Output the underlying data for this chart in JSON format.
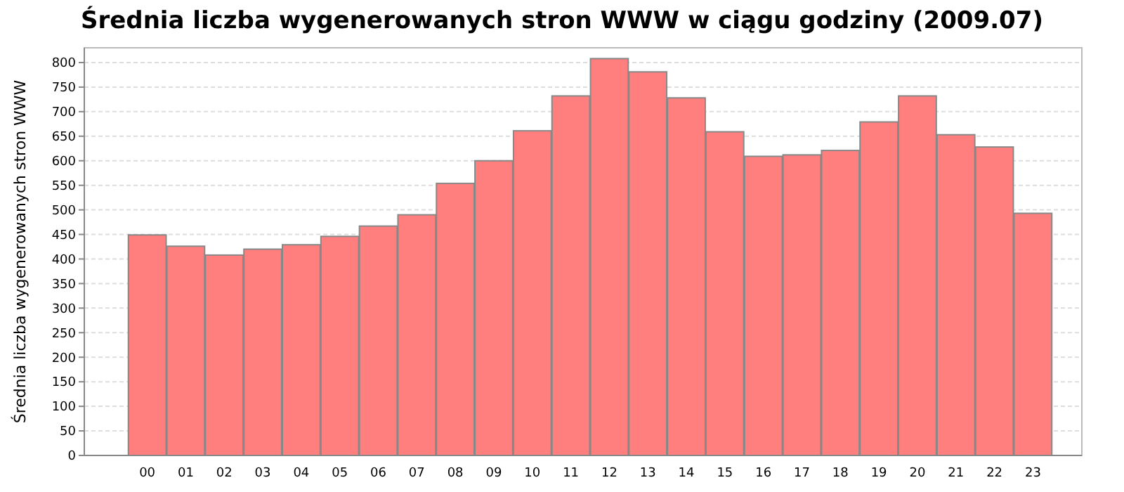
{
  "chart_data": {
    "type": "bar",
    "title": "Średnia liczba wygenerowanych stron WWW w ciągu godziny (2009.07)",
    "ylabel": "Średnia liczba wygenerowanych stron WWW",
    "categories": [
      "00",
      "01",
      "02",
      "03",
      "04",
      "05",
      "06",
      "07",
      "08",
      "09",
      "10",
      "11",
      "12",
      "13",
      "14",
      "15",
      "16",
      "17",
      "18",
      "19",
      "20",
      "21",
      "22",
      "23"
    ],
    "values": [
      449,
      426,
      408,
      420,
      429,
      446,
      467,
      490,
      554,
      600,
      661,
      732,
      808,
      781,
      728,
      659,
      609,
      612,
      621,
      679,
      732,
      653,
      628,
      493
    ],
    "color": "#ff7f7f",
    "ylim": [
      0,
      830
    ],
    "yticks": [
      0,
      50,
      100,
      150,
      200,
      250,
      300,
      350,
      400,
      450,
      500,
      550,
      600,
      650,
      700,
      750,
      800
    ],
    "grid": "y"
  }
}
